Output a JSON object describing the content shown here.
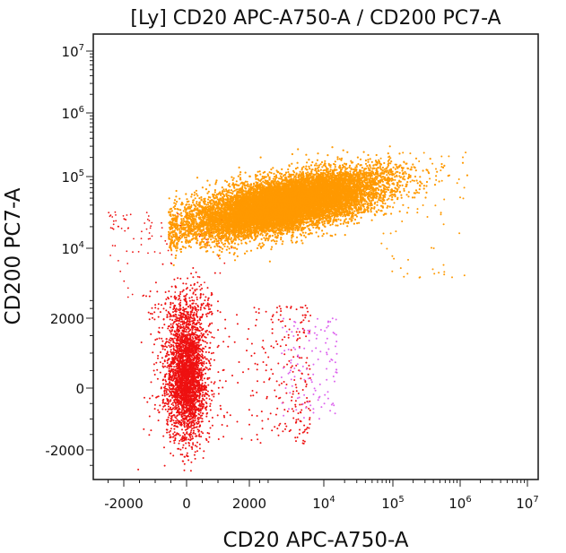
{
  "chart_data": {
    "type": "scatter",
    "title": "[Ly] CD20 APC-A750-A / CD200 PC7-A",
    "xlabel": "CD20 APC-A750-A",
    "ylabel": "CD200 PC7-A",
    "x_scale": "biexponential",
    "y_scale": "biexponential",
    "grid": false,
    "legend": "none",
    "x_ticks": [
      {
        "value": -2000,
        "label": "-2000"
      },
      {
        "value": 0,
        "label": "0"
      },
      {
        "value": 2000,
        "label": "2000"
      },
      {
        "value": 10000,
        "base": "10",
        "exp": "4"
      },
      {
        "value": 100000,
        "base": "10",
        "exp": "5"
      },
      {
        "value": 1000000,
        "base": "10",
        "exp": "6"
      },
      {
        "value": 10000000,
        "base": "10",
        "exp": "7"
      }
    ],
    "y_ticks": [
      {
        "value": -2000,
        "label": "-2000"
      },
      {
        "value": 0,
        "label": "0"
      },
      {
        "value": 2000,
        "label": "2000"
      },
      {
        "value": 10000,
        "base": "10",
        "exp": "4"
      },
      {
        "value": 100000,
        "base": "10",
        "exp": "5"
      },
      {
        "value": 1000000,
        "base": "10",
        "exp": "6"
      },
      {
        "value": 10000000,
        "base": "10",
        "exp": "7"
      }
    ],
    "series": [
      {
        "color": "#ff9900",
        "points": 14000,
        "clusters": [
          {
            "x_center": 15000,
            "y_center": 50000,
            "x_spread_decades": 0.35,
            "y_spread_decades": 0.22,
            "x_range": [
              1500,
              60000
            ],
            "y_range": [
              20000,
              350000
            ]
          }
        ]
      },
      {
        "color": "#ee1111",
        "points": 3500,
        "clusters": [
          {
            "x_center": 0,
            "y_center": 500,
            "x_sd": 300,
            "y_sd": 900
          }
        ]
      },
      {
        "color": "#dd66ee",
        "points": 120,
        "clusters": [
          {
            "x_center": 7000,
            "y_center": 300,
            "x_range": [
              4000,
              15000
            ],
            "y_range": [
              -1000,
              2000
            ]
          }
        ]
      }
    ]
  }
}
